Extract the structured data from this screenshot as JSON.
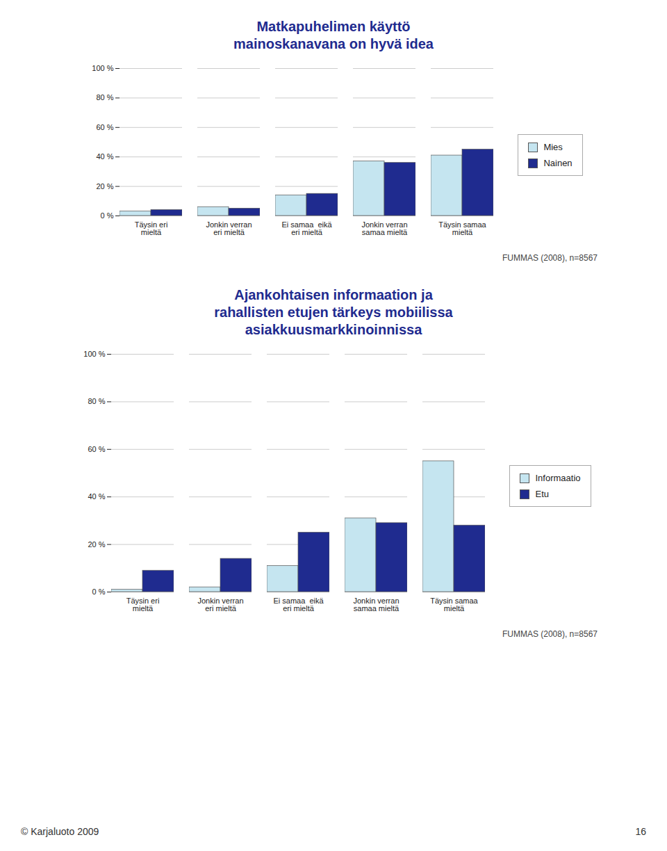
{
  "chart_data": [
    {
      "type": "bar",
      "title": "Matkapuhelimen käyttö\nmainoskanavana on hyvä idea",
      "categories": [
        "Täysin eri\nmieltä",
        "Jonkin verran\neri mieltä",
        "Ei samaa  eikä\neri mieltä",
        "Jonkin verran\nsamaa mieltä",
        "Täysin samaa\nmieltä"
      ],
      "series": [
        {
          "name": "Mies",
          "color": "#c5e5f0",
          "values": [
            3,
            6,
            14,
            37,
            41
          ]
        },
        {
          "name": "Nainen",
          "color": "#1f2b8f",
          "values": [
            4,
            5,
            15,
            36,
            45
          ]
        }
      ],
      "ylim": [
        0,
        100
      ],
      "yticks": [
        {
          "value": 0,
          "label": "0 %"
        },
        {
          "value": 20,
          "label": "20 %"
        },
        {
          "value": 40,
          "label": "40 %"
        },
        {
          "value": 60,
          "label": "60 %"
        },
        {
          "value": 80,
          "label": "80 %"
        },
        {
          "value": 100,
          "label": "100 %"
        }
      ],
      "grid": true,
      "legend": "right",
      "annotations": [
        "FUMMAS (2008), n=8567"
      ]
    },
    {
      "type": "bar",
      "title": "Ajankohtaisen informaation ja\nrahallisten etujen tärkeys mobiilissa\nasiakkuusmarkkinoinnissa",
      "categories": [
        "Täysin eri\nmieltä",
        "Jonkin verran\neri mieltä",
        "Ei samaa  eikä\neri mieltä",
        "Jonkin verran\nsamaa mieltä",
        "Täysin samaa\nmieltä"
      ],
      "series": [
        {
          "name": "Informaatio",
          "color": "#c5e5f0",
          "values": [
            1,
            2,
            11,
            31,
            55
          ]
        },
        {
          "name": "Etu",
          "color": "#1f2b8f",
          "values": [
            9,
            14,
            25,
            29,
            28
          ]
        }
      ],
      "ylim": [
        0,
        100
      ],
      "yticks": [
        {
          "value": 0,
          "label": "0 %"
        },
        {
          "value": 20,
          "label": "20 %"
        },
        {
          "value": 40,
          "label": "40 %"
        },
        {
          "value": 60,
          "label": "60 %"
        },
        {
          "value": 80,
          "label": "80 %"
        },
        {
          "value": 100,
          "label": "100 %"
        }
      ],
      "grid": true,
      "legend": "right",
      "annotations": [
        "FUMMAS (2008), n=8567"
      ]
    }
  ],
  "annotations": [
    "© Karjaluoto 2009",
    "16"
  ]
}
